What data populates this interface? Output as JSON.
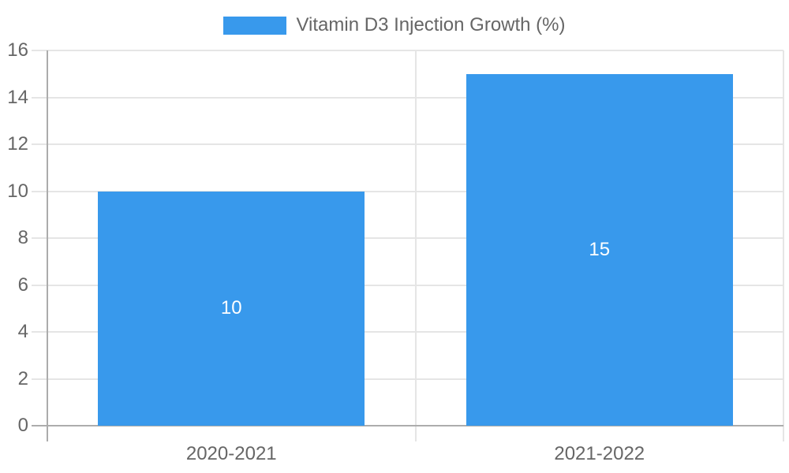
{
  "legend": {
    "label": "Vitamin D3 Injection Growth (%)"
  },
  "chart_data": {
    "type": "bar",
    "categories": [
      "2020-2021",
      "2021-2022"
    ],
    "series": [
      {
        "name": "Vitamin D3 Injection Growth (%)",
        "values": [
          10,
          15
        ]
      }
    ],
    "data_labels": [
      "10",
      "15"
    ],
    "yticks": [
      0,
      2,
      4,
      6,
      8,
      10,
      12,
      14,
      16
    ],
    "ylim": [
      0,
      16
    ],
    "xlabel": "",
    "ylabel": "",
    "grid": true,
    "legend_position": "top",
    "colors": {
      "bar": "#3899EC",
      "gridline": "#E5E5E5",
      "axis_line": "#ACACAC",
      "tick_text": "#666666",
      "value_label": "#FFFFFF",
      "background": "#FFFFFF"
    }
  }
}
